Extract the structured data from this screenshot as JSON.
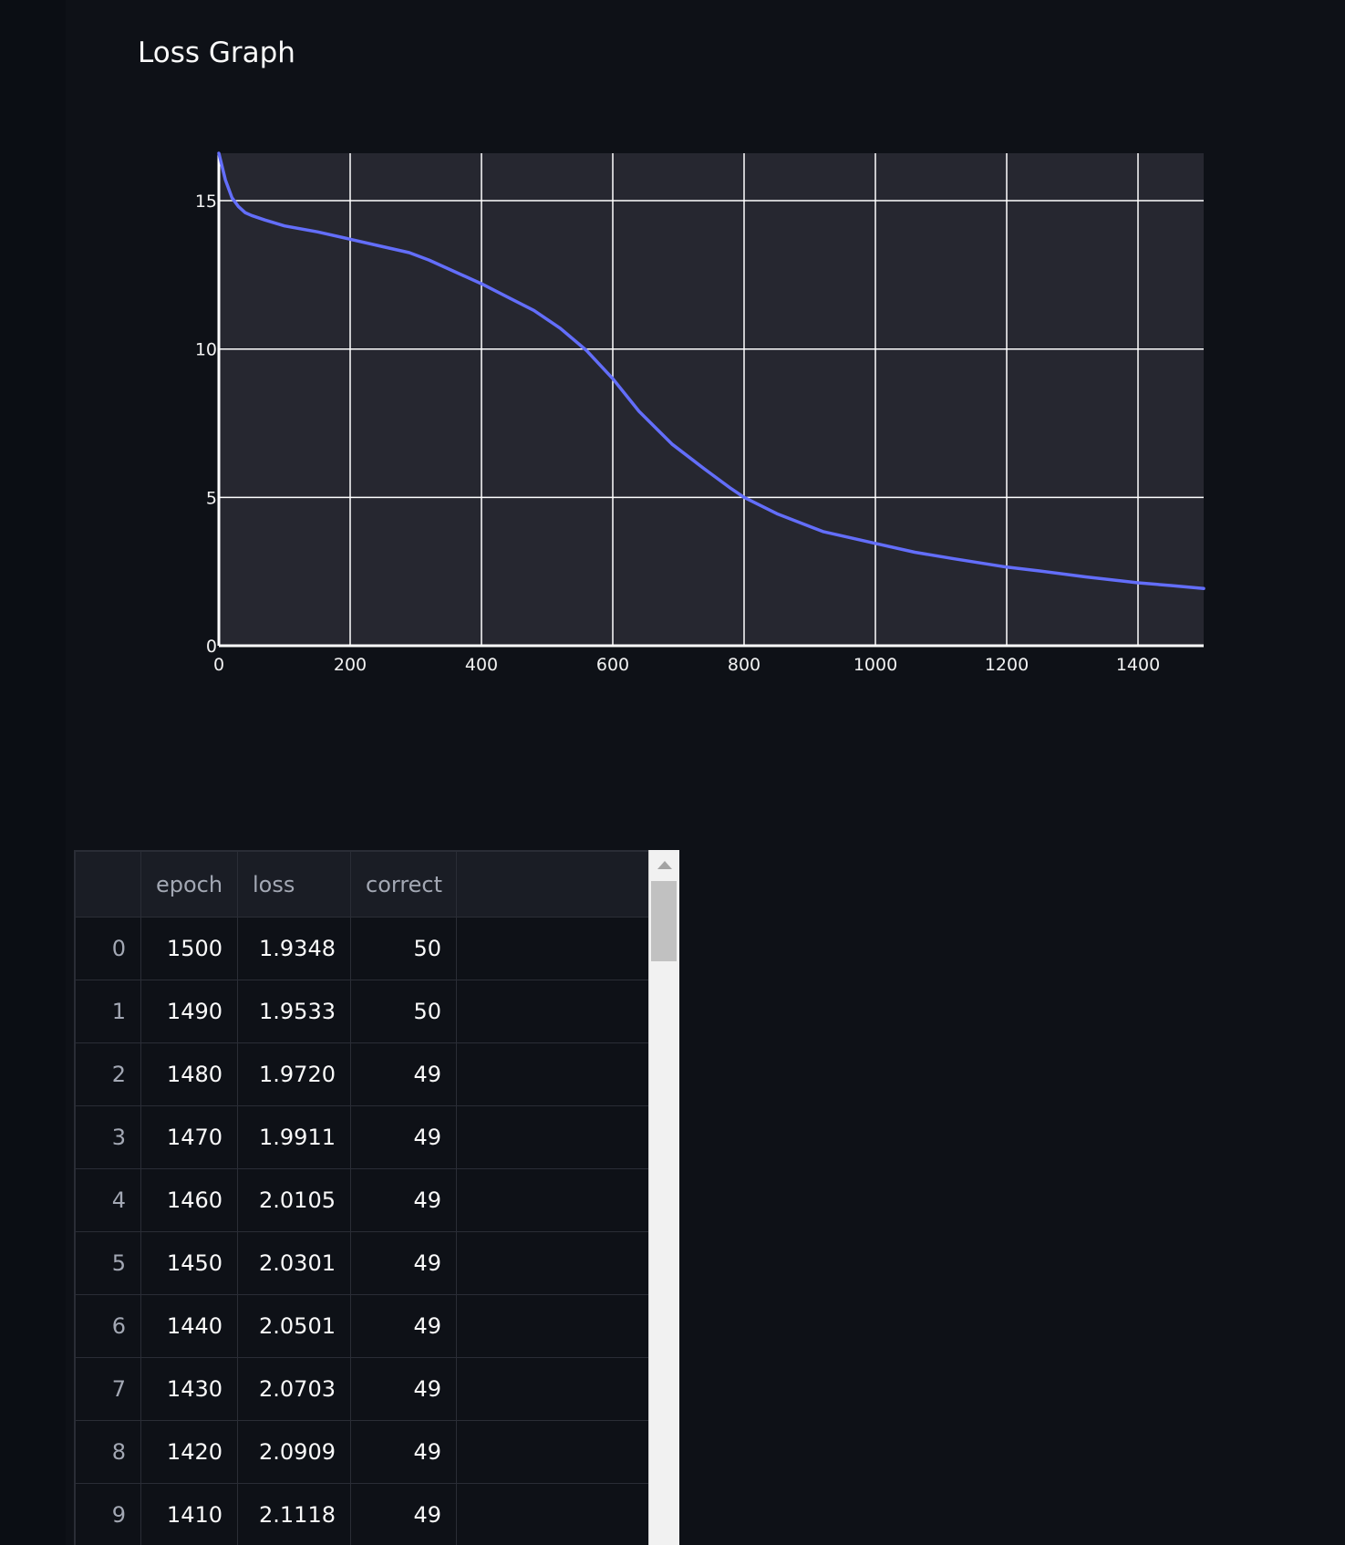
{
  "page": {
    "title": "Loss Graph"
  },
  "chart_data": {
    "type": "line",
    "title": "",
    "xlabel": "",
    "ylabel": "",
    "xlim": [
      0,
      1500
    ],
    "ylim": [
      0,
      16.6
    ],
    "x_ticks": [
      0,
      200,
      400,
      600,
      800,
      1000,
      1200,
      1400
    ],
    "y_ticks": [
      0,
      5,
      10,
      15
    ],
    "grid": true,
    "legend": "none",
    "line_color": "#636efa",
    "plot_background": "#262730",
    "grid_color": "#ffffff",
    "series": [
      {
        "x": [
          0,
          10,
          20,
          30,
          40,
          50,
          70,
          100,
          150,
          200,
          250,
          290,
          320,
          350,
          400,
          440,
          480,
          520,
          560,
          600,
          640,
          690,
          740,
          780,
          800,
          850,
          920,
          1000,
          1060,
          1120,
          1200,
          1250,
          1320,
          1400,
          1450,
          1500
        ],
        "y": [
          16.6,
          15.7,
          15.1,
          14.8,
          14.6,
          14.5,
          14.35,
          14.15,
          13.95,
          13.7,
          13.45,
          13.25,
          13.0,
          12.7,
          12.2,
          11.75,
          11.3,
          10.7,
          9.95,
          9.0,
          7.9,
          6.8,
          5.95,
          5.3,
          5.0,
          4.45,
          3.85,
          3.45,
          3.15,
          2.93,
          2.65,
          2.52,
          2.32,
          2.12,
          2.03,
          1.93
        ]
      }
    ]
  },
  "table": {
    "columns": [
      "",
      "epoch",
      "loss",
      "correct"
    ],
    "rows": [
      {
        "index": "0",
        "epoch": "1500",
        "loss": "1.9348",
        "correct": "50"
      },
      {
        "index": "1",
        "epoch": "1490",
        "loss": "1.9533",
        "correct": "50"
      },
      {
        "index": "2",
        "epoch": "1480",
        "loss": "1.9720",
        "correct": "49"
      },
      {
        "index": "3",
        "epoch": "1470",
        "loss": "1.9911",
        "correct": "49"
      },
      {
        "index": "4",
        "epoch": "1460",
        "loss": "2.0105",
        "correct": "49"
      },
      {
        "index": "5",
        "epoch": "1450",
        "loss": "2.0301",
        "correct": "49"
      },
      {
        "index": "6",
        "epoch": "1440",
        "loss": "2.0501",
        "correct": "49"
      },
      {
        "index": "7",
        "epoch": "1430",
        "loss": "2.0703",
        "correct": "49"
      },
      {
        "index": "8",
        "epoch": "1420",
        "loss": "2.0909",
        "correct": "49"
      },
      {
        "index": "9",
        "epoch": "1410",
        "loss": "2.1118",
        "correct": "49"
      }
    ]
  }
}
